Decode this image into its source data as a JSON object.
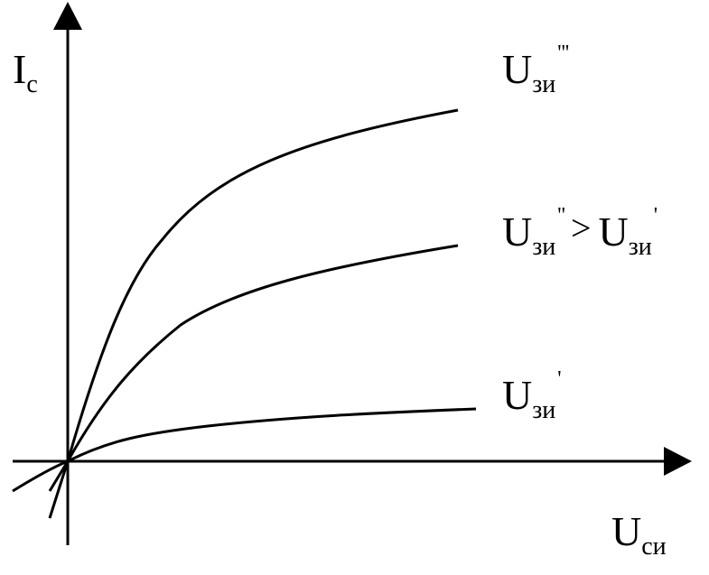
{
  "axes": {
    "y": {
      "main": "I",
      "sub": "с"
    },
    "x": {
      "main": "U",
      "sub": "си"
    }
  },
  "curve_labels": {
    "top": {
      "main": "U",
      "sub": "зи",
      "prime": "'''"
    },
    "middle": {
      "main": "U",
      "sub": "зи",
      "prime": "''",
      "relation": ">",
      "rhs_main": "U",
      "rhs_sub": "зи",
      "rhs_prime": "'"
    },
    "bottom": {
      "main": "U",
      "sub": "зи",
      "prime": "'"
    }
  },
  "colors": {
    "line": "#000000",
    "background": "#ffffff"
  }
}
